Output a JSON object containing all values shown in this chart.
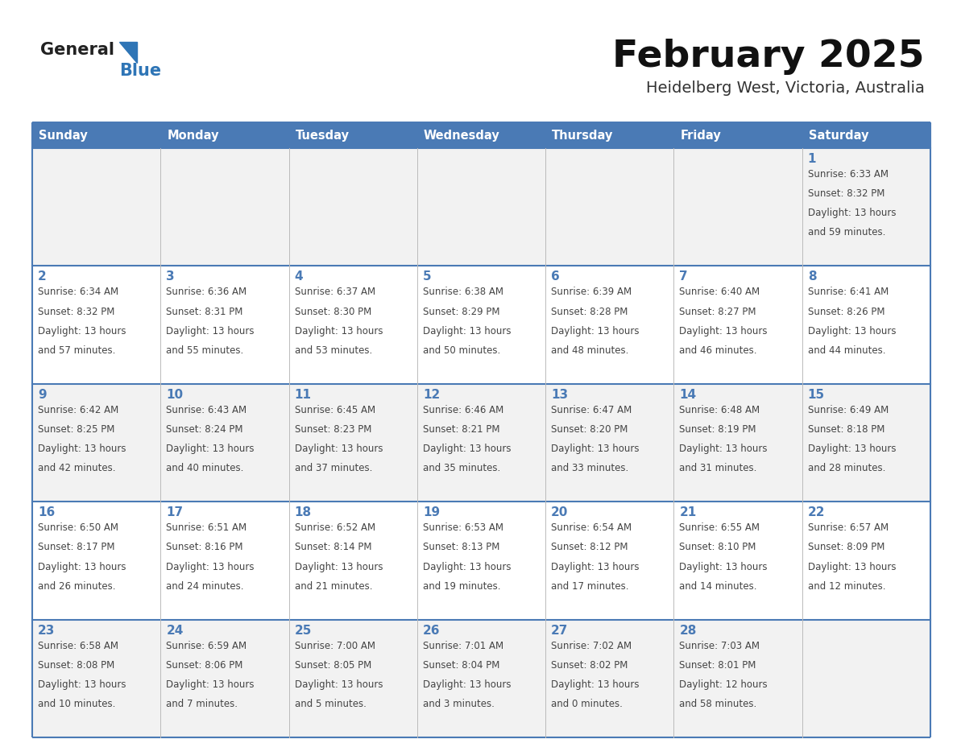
{
  "title": "February 2025",
  "subtitle": "Heidelberg West, Victoria, Australia",
  "days_of_week": [
    "Sunday",
    "Monday",
    "Tuesday",
    "Wednesday",
    "Thursday",
    "Friday",
    "Saturday"
  ],
  "header_bg": "#4a7ab5",
  "header_text": "#ffffff",
  "cell_bg_odd": "#f2f2f2",
  "cell_bg_even": "#ffffff",
  "day_number_color": "#4a7ab5",
  "info_text_color": "#444444",
  "border_color": "#4a7ab5",
  "grid_color": "#bbbbbb",
  "logo_general_color": "#222222",
  "logo_blue_color": "#2e75b6",
  "logo_triangle_color": "#2e75b6",
  "title_color": "#111111",
  "subtitle_color": "#333333",
  "calendar_data": [
    [
      null,
      null,
      null,
      null,
      null,
      null,
      1
    ],
    [
      2,
      3,
      4,
      5,
      6,
      7,
      8
    ],
    [
      9,
      10,
      11,
      12,
      13,
      14,
      15
    ],
    [
      16,
      17,
      18,
      19,
      20,
      21,
      22
    ],
    [
      23,
      24,
      25,
      26,
      27,
      28,
      null
    ]
  ],
  "sun_info": {
    "1": {
      "rise": "6:33 AM",
      "set": "8:32 PM",
      "hours": "13",
      "mins": "59"
    },
    "2": {
      "rise": "6:34 AM",
      "set": "8:32 PM",
      "hours": "13",
      "mins": "57"
    },
    "3": {
      "rise": "6:36 AM",
      "set": "8:31 PM",
      "hours": "13",
      "mins": "55"
    },
    "4": {
      "rise": "6:37 AM",
      "set": "8:30 PM",
      "hours": "13",
      "mins": "53"
    },
    "5": {
      "rise": "6:38 AM",
      "set": "8:29 PM",
      "hours": "13",
      "mins": "50"
    },
    "6": {
      "rise": "6:39 AM",
      "set": "8:28 PM",
      "hours": "13",
      "mins": "48"
    },
    "7": {
      "rise": "6:40 AM",
      "set": "8:27 PM",
      "hours": "13",
      "mins": "46"
    },
    "8": {
      "rise": "6:41 AM",
      "set": "8:26 PM",
      "hours": "13",
      "mins": "44"
    },
    "9": {
      "rise": "6:42 AM",
      "set": "8:25 PM",
      "hours": "13",
      "mins": "42"
    },
    "10": {
      "rise": "6:43 AM",
      "set": "8:24 PM",
      "hours": "13",
      "mins": "40"
    },
    "11": {
      "rise": "6:45 AM",
      "set": "8:23 PM",
      "hours": "13",
      "mins": "37"
    },
    "12": {
      "rise": "6:46 AM",
      "set": "8:21 PM",
      "hours": "13",
      "mins": "35"
    },
    "13": {
      "rise": "6:47 AM",
      "set": "8:20 PM",
      "hours": "13",
      "mins": "33"
    },
    "14": {
      "rise": "6:48 AM",
      "set": "8:19 PM",
      "hours": "13",
      "mins": "31"
    },
    "15": {
      "rise": "6:49 AM",
      "set": "8:18 PM",
      "hours": "13",
      "mins": "28"
    },
    "16": {
      "rise": "6:50 AM",
      "set": "8:17 PM",
      "hours": "13",
      "mins": "26"
    },
    "17": {
      "rise": "6:51 AM",
      "set": "8:16 PM",
      "hours": "13",
      "mins": "24"
    },
    "18": {
      "rise": "6:52 AM",
      "set": "8:14 PM",
      "hours": "13",
      "mins": "21"
    },
    "19": {
      "rise": "6:53 AM",
      "set": "8:13 PM",
      "hours": "13",
      "mins": "19"
    },
    "20": {
      "rise": "6:54 AM",
      "set": "8:12 PM",
      "hours": "13",
      "mins": "17"
    },
    "21": {
      "rise": "6:55 AM",
      "set": "8:10 PM",
      "hours": "13",
      "mins": "14"
    },
    "22": {
      "rise": "6:57 AM",
      "set": "8:09 PM",
      "hours": "13",
      "mins": "12"
    },
    "23": {
      "rise": "6:58 AM",
      "set": "8:08 PM",
      "hours": "13",
      "mins": "10"
    },
    "24": {
      "rise": "6:59 AM",
      "set": "8:06 PM",
      "hours": "13",
      "mins": "7"
    },
    "25": {
      "rise": "7:00 AM",
      "set": "8:05 PM",
      "hours": "13",
      "mins": "5"
    },
    "26": {
      "rise": "7:01 AM",
      "set": "8:04 PM",
      "hours": "13",
      "mins": "3"
    },
    "27": {
      "rise": "7:02 AM",
      "set": "8:02 PM",
      "hours": "13",
      "mins": "0"
    },
    "28": {
      "rise": "7:03 AM",
      "set": "8:01 PM",
      "hours": "12",
      "mins": "58"
    }
  }
}
